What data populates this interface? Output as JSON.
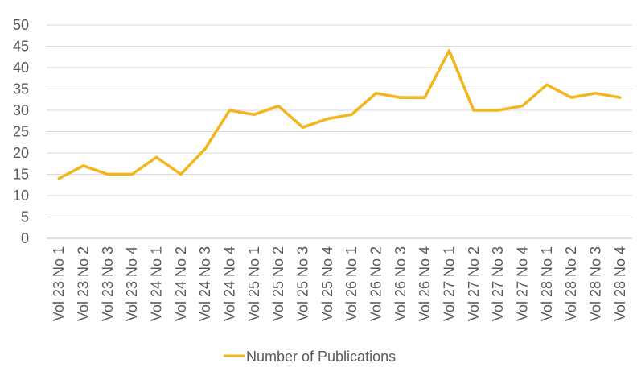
{
  "chart_data": {
    "type": "line",
    "title": "",
    "xlabel": "",
    "ylabel": "",
    "ylim": [
      0,
      50
    ],
    "yticks": [
      0,
      5,
      10,
      15,
      20,
      25,
      30,
      35,
      40,
      45,
      50
    ],
    "grid": true,
    "legend_position": "bottom",
    "categories": [
      "Vol 23 No 1",
      "Vol 23 No 2",
      "Vol 23 No 3",
      "Vol 23 No 4",
      "Vol 24 No 1",
      "Vol 24 No 2",
      "Vol 24 No 3",
      "Vol 24 No 4",
      "Vol 25 No 1",
      "Vol 25 No 2",
      "Vol 25 No 3",
      "Vol 25 No 4",
      "Vol 26 No 1",
      "Vol 26 No 2",
      "Vol 26 No 3",
      "Vol 26 No 4",
      "Vol 27 No 1",
      "Vol 27 No 2",
      "Vol 27 No 3",
      "Vol 27 No 4",
      "Vol 28 No 1",
      "Vol 28 No 2",
      "Vol 28 No 3",
      "Vol 28 No 4"
    ],
    "series": [
      {
        "name": "Number of Publications",
        "color": "#F2B51C",
        "values": [
          14,
          17,
          15,
          15,
          19,
          15,
          21,
          30,
          29,
          31,
          26,
          28,
          29,
          34,
          33,
          33,
          44,
          30,
          30,
          31,
          36,
          33,
          34,
          33
        ]
      }
    ]
  }
}
